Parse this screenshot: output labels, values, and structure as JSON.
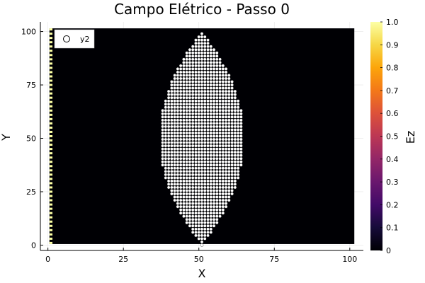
{
  "chart_data": {
    "type": "heatmap",
    "title": "Campo Elétrico - Passo 0",
    "xlabel": "X",
    "ylabel": "Y",
    "xlim": [
      -2.5,
      104.5
    ],
    "ylim": [
      -2.5,
      104.5
    ],
    "x_ticks": [
      0,
      25,
      50,
      75,
      100
    ],
    "y_ticks": [
      0,
      25,
      50,
      75,
      100
    ],
    "grid": true,
    "heatmap": {
      "x_range": [
        1,
        101
      ],
      "y_range": [
        1,
        101
      ],
      "background_value": 0,
      "source_column_x": 1,
      "source_column_value": 1,
      "colormap": "inferno"
    },
    "colorbar": {
      "label": "Ez",
      "min": 0,
      "max": 1,
      "ticks": [
        "0",
        "0.1",
        "0.2",
        "0.3",
        "0.4",
        "0.5",
        "0.6",
        "0.7",
        "0.8",
        "0.9",
        "1.0"
      ]
    },
    "scatter": {
      "name": "y2",
      "marker": "circle",
      "marker_color": "#ffffff",
      "shape": "lens",
      "x_center": 51,
      "x_half_width": 14,
      "y_range": [
        0,
        100
      ],
      "x_step": 1,
      "y_step": 1.5
    },
    "legend_position": "top-left"
  }
}
